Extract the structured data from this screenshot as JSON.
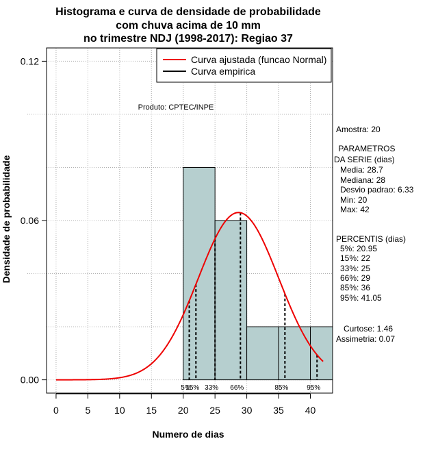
{
  "title_lines": [
    "Histograma e curva de densidade de probabilidade",
    "com chuva acima de 10 mm",
    "no trimestre NDJ (1998-2017): Regiao 37"
  ],
  "product_note": "Produto: CPTEC/INPE",
  "side_panel": {
    "sample": "Amostra: 20",
    "params_header": " PARAMETROS",
    "params_subheader": "DA SERIE (dias)",
    "params": [
      "Media: 28.7",
      "Mediana: 28",
      "Desvio padrao: 6.33",
      "Min: 20",
      "Max: 42"
    ],
    "percentiles_header": "PERCENTIS (dias)",
    "percentiles": [
      "5%: 20.95",
      "15%: 22",
      "33%: 25",
      "66%: 29",
      "85%: 36",
      "95%: 41.05"
    ],
    "kurtosis": "Curtose: 1.46",
    "skewness": "Assimetria: 0.07"
  },
  "colors": {
    "bar_fill": "#b6cfcf",
    "curve": "#ee0000",
    "grid": "#b0b0b0"
  },
  "chart_data": {
    "type": "bar",
    "xlabel": "Numero de dias",
    "ylabel": "Densidade de probabilidade",
    "xlim": [
      -1.5,
      43.5
    ],
    "ylim": [
      -0.005,
      0.125
    ],
    "xticks": [
      0,
      5,
      10,
      15,
      20,
      25,
      30,
      35,
      40
    ],
    "yticks": [
      0.0,
      0.06,
      0.12
    ],
    "ytick_labels": [
      "0.00",
      "0.06",
      "0.12"
    ],
    "grid": true,
    "legend_position": "top-right",
    "histogram": {
      "bins": [
        [
          20,
          25
        ],
        [
          25,
          30
        ],
        [
          30,
          35
        ],
        [
          35,
          40
        ],
        [
          40,
          45
        ]
      ],
      "density": [
        0.08,
        0.06,
        0.02,
        0.02,
        0.02
      ]
    },
    "series": [
      {
        "name": "Curva ajustada (funcao Normal)",
        "kind": "normal_fit",
        "mean": 28.7,
        "sd": 6.33,
        "x_range": [
          0,
          42
        ],
        "color": "#ee0000"
      },
      {
        "name": "Curva empirica",
        "kind": "empirical",
        "color": "#000000"
      }
    ],
    "percentile_markers": [
      {
        "label": "5%",
        "x": 20.95
      },
      {
        "label": "15%",
        "x": 22
      },
      {
        "label": "33%",
        "x": 25
      },
      {
        "label": "66%",
        "x": 29
      },
      {
        "label": "85%",
        "x": 36
      },
      {
        "label": "95%",
        "x": 41.05
      }
    ]
  }
}
